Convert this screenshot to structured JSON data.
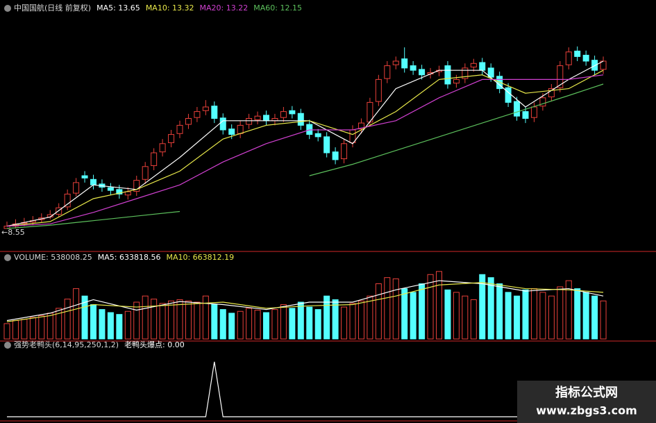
{
  "chart_data": [
    {
      "type": "candlestick",
      "title": "中国国航(日线 前复权)",
      "open": [
        8.55,
        8.6,
        8.66,
        8.69,
        8.74,
        8.8,
        8.86,
        9.02,
        9.32,
        9.7,
        9.62,
        9.52,
        9.44,
        9.4,
        9.28,
        9.36,
        9.62,
        9.92,
        10.22,
        10.42,
        10.62,
        10.82,
        10.97,
        11.12,
        11.22,
        10.96,
        10.72,
        10.62,
        10.82,
        10.92,
        11.02,
        10.9,
        10.97,
        11.12,
        11.06,
        10.82,
        10.62,
        10.55,
        10.22,
        10.07,
        10.42,
        10.72,
        10.87,
        11.32,
        11.82,
        12.12,
        12.25,
        12.1,
        12.02,
        11.92,
        11.97,
        12.1,
        11.72,
        11.82,
        12.07,
        12.17,
        12.05,
        11.87,
        11.62,
        11.32,
        11.1,
        10.97,
        11.22,
        11.42,
        11.62,
        12.12,
        12.42,
        12.33,
        12.22,
        12.02
      ],
      "high": [
        8.7,
        8.75,
        8.78,
        8.82,
        8.88,
        8.95,
        9.1,
        9.4,
        9.65,
        9.8,
        9.72,
        9.62,
        9.54,
        9.5,
        9.45,
        9.7,
        10.0,
        10.3,
        10.5,
        10.7,
        10.9,
        11.05,
        11.2,
        11.35,
        11.32,
        11.06,
        10.82,
        10.9,
        11.05,
        11.1,
        11.12,
        11.05,
        11.2,
        11.22,
        11.16,
        10.92,
        10.72,
        10.65,
        10.32,
        10.5,
        10.8,
        10.95,
        11.4,
        11.9,
        12.2,
        12.3,
        12.5,
        12.2,
        12.12,
        12.05,
        12.1,
        12.2,
        11.9,
        12.15,
        12.25,
        12.27,
        12.15,
        11.97,
        11.72,
        11.42,
        11.2,
        11.3,
        11.5,
        11.7,
        12.2,
        12.5,
        12.52,
        12.43,
        12.32,
        12.3
      ],
      "low": [
        8.55,
        8.55,
        8.6,
        8.62,
        8.68,
        8.75,
        8.8,
        8.95,
        9.25,
        9.55,
        9.4,
        9.35,
        9.28,
        9.2,
        9.18,
        9.26,
        9.52,
        9.82,
        10.12,
        10.32,
        10.52,
        10.72,
        10.87,
        11.02,
        10.85,
        10.6,
        10.5,
        10.52,
        10.72,
        10.82,
        10.8,
        10.8,
        10.87,
        10.95,
        10.7,
        10.5,
        10.45,
        10.1,
        9.95,
        9.97,
        10.32,
        10.62,
        10.77,
        11.22,
        11.72,
        12.02,
        11.95,
        11.9,
        11.8,
        11.82,
        11.87,
        11.6,
        11.62,
        11.72,
        11.97,
        11.9,
        11.75,
        11.5,
        11.2,
        10.9,
        10.85,
        10.87,
        11.12,
        11.32,
        11.52,
        12.02,
        12.2,
        12.1,
        11.9,
        11.92
      ],
      "close": [
        8.6,
        8.65,
        8.68,
        8.72,
        8.78,
        8.85,
        9.0,
        9.3,
        9.55,
        9.65,
        9.5,
        9.45,
        9.38,
        9.3,
        9.35,
        9.6,
        9.9,
        10.2,
        10.4,
        10.6,
        10.8,
        10.95,
        11.1,
        11.2,
        10.95,
        10.7,
        10.6,
        10.8,
        10.95,
        11.0,
        10.9,
        10.95,
        11.1,
        11.05,
        10.8,
        10.6,
        10.55,
        10.2,
        10.05,
        10.4,
        10.7,
        10.85,
        11.3,
        11.8,
        12.1,
        12.2,
        12.05,
        12.0,
        11.9,
        11.95,
        12.0,
        11.7,
        11.8,
        12.05,
        12.15,
        12.0,
        11.85,
        11.6,
        11.3,
        11.0,
        10.95,
        11.2,
        11.4,
        11.6,
        12.1,
        12.4,
        12.3,
        12.2,
        12.0,
        12.2
      ],
      "up_color": "#e8403a",
      "down_color": "#54ffff",
      "ylim": [
        8.2,
        13.2
      ],
      "low_marker": {
        "value": 8.55,
        "label": "←8.55"
      },
      "series": [
        {
          "name": "MA5: 13.65",
          "color": "#ffffff",
          "x": [
            0,
            5,
            10,
            15,
            20,
            25,
            30,
            35,
            40,
            45,
            50,
            55,
            60,
            65,
            69
          ],
          "values": [
            8.6,
            8.8,
            9.5,
            9.4,
            10.1,
            10.9,
            10.9,
            10.9,
            10.4,
            11.6,
            12.0,
            12.0,
            11.2,
            11.8,
            12.2
          ]
        },
        {
          "name": "MA10: 13.32",
          "color": "#e8e84a",
          "x": [
            0,
            5,
            10,
            15,
            20,
            25,
            30,
            35,
            40,
            45,
            50,
            55,
            60,
            65,
            69
          ],
          "values": [
            8.6,
            8.7,
            9.2,
            9.4,
            9.8,
            10.5,
            10.8,
            10.9,
            10.6,
            11.1,
            11.8,
            11.9,
            11.5,
            11.6,
            12.0
          ]
        },
        {
          "name": "MA20: 13.22",
          "color": "#d040d0",
          "x": [
            0,
            5,
            10,
            15,
            20,
            25,
            30,
            35,
            40,
            45,
            50,
            55,
            60,
            65,
            69
          ],
          "values": [
            8.6,
            8.65,
            8.9,
            9.2,
            9.5,
            10.0,
            10.4,
            10.7,
            10.7,
            10.9,
            11.4,
            11.8,
            11.8,
            11.8,
            11.9
          ]
        },
        {
          "name": "MA60: 12.15",
          "color": "#5cc05c",
          "x": [
            0,
            5,
            10,
            15,
            20,
            25,
            30,
            35,
            40,
            45,
            50,
            55,
            60,
            65,
            69
          ],
          "values": [
            8.55,
            8.62,
            8.72,
            8.82,
            8.92,
            null,
            null,
            9.7,
            9.95,
            10.25,
            10.55,
            10.85,
            11.15,
            11.45,
            11.7
          ]
        }
      ]
    },
    {
      "type": "bar",
      "title": "VOLUME: 538008.25",
      "values": [
        250000,
        300000,
        320000,
        350000,
        380000,
        420000,
        500000,
        650000,
        820000,
        700000,
        560000,
        480000,
        430000,
        400000,
        450000,
        600000,
        700000,
        650000,
        580000,
        620000,
        640000,
        620000,
        600000,
        700000,
        560000,
        480000,
        420000,
        450000,
        500000,
        470000,
        430000,
        480000,
        560000,
        500000,
        600000,
        520000,
        480000,
        700000,
        640000,
        520000,
        580000,
        620000,
        700000,
        900000,
        1000000,
        980000,
        820000,
        760000,
        900000,
        1050000,
        1100000,
        800000,
        760000,
        700000,
        640000,
        1050000,
        1000000,
        900000,
        760000,
        700000,
        800000,
        820000,
        760000,
        700000,
        850000,
        950000,
        820000,
        760000,
        700000,
        620000
      ],
      "ylim": [
        0,
        1200000
      ],
      "series": [
        {
          "name": "MA5: 633818.56",
          "color": "#ffffff",
          "x": [
            0,
            5,
            10,
            15,
            20,
            25,
            30,
            35,
            40,
            45,
            50,
            55,
            60,
            65,
            69
          ],
          "values": [
            300000,
            420000,
            640000,
            470000,
            610000,
            560000,
            480000,
            600000,
            600000,
            800000,
            950000,
            900000,
            780000,
            820000,
            700000
          ]
        },
        {
          "name": "MA10: 663812.19",
          "color": "#e8e84a",
          "x": [
            0,
            5,
            10,
            15,
            20,
            25,
            30,
            35,
            40,
            45,
            50,
            55,
            60,
            65,
            69
          ],
          "values": [
            280000,
            380000,
            560000,
            520000,
            560000,
            600000,
            500000,
            540000,
            560000,
            700000,
            880000,
            920000,
            820000,
            800000,
            760000
          ]
        }
      ]
    },
    {
      "type": "line",
      "title": "强势老鸭头(6,14,95,250,1,2)",
      "ylim": [
        0,
        1.2
      ],
      "series": [
        {
          "name": "老鸭头爆点: 0.00",
          "color": "#ffffff",
          "x": [
            0,
            23,
            24,
            25,
            69
          ],
          "values": [
            0,
            0,
            1,
            0,
            0
          ]
        }
      ]
    }
  ],
  "watermark": {
    "title": "指标公式网",
    "url": "www.zbgs3.com"
  }
}
